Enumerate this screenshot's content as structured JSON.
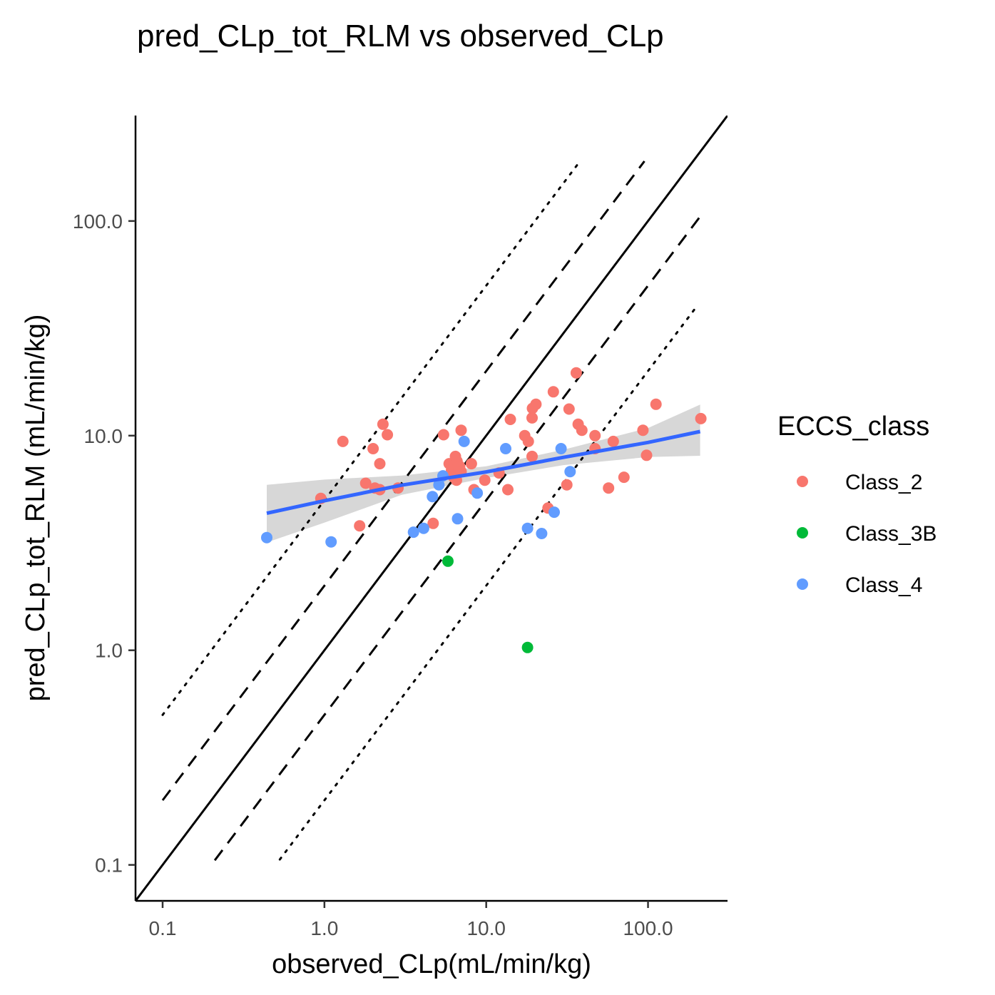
{
  "chart_data": {
    "type": "scatter",
    "title": "pred_CLp_tot_RLM vs observed_CLp",
    "xlabel": "observed_CLp(mL/min/kg)",
    "ylabel": "pred_CLp_tot_RLM (mL/min/kg)",
    "xscale": "log10",
    "yscale": "log10",
    "xlim": [
      0.068,
      310
    ],
    "ylim": [
      0.068,
      310
    ],
    "xticks": [
      0.1,
      1,
      10,
      100
    ],
    "xtick_labels": [
      "0.1",
      "1.0",
      "10.0",
      "100.0"
    ],
    "yticks": [
      0.1,
      1,
      10,
      100
    ],
    "ytick_labels": [
      "0.1",
      "1.0",
      "10.0",
      "100.0"
    ],
    "grid": false,
    "legend": {
      "title": "ECCS_class",
      "placement": "right",
      "entries": [
        {
          "label": "Class_2",
          "color": "#F8766D"
        },
        {
          "label": "Class_3B",
          "color": "#00BA38"
        },
        {
          "label": "Class_4",
          "color": "#619CFF"
        }
      ]
    },
    "reference_lines": [
      {
        "kind": "identity",
        "style": "solid",
        "fold": 1,
        "x_range": [
          0.068,
          310
        ]
      },
      {
        "kind": "fold_upper",
        "style": "dashed",
        "fold": 2,
        "x_range": [
          0.1,
          95
        ]
      },
      {
        "kind": "fold_lower",
        "style": "dashed",
        "fold": 0.5,
        "x_range": [
          0.21,
          210
        ]
      },
      {
        "kind": "fold_upper",
        "style": "dotted",
        "fold": 5,
        "x_range": [
          0.1,
          38
        ]
      },
      {
        "kind": "fold_lower",
        "style": "dotted",
        "fold": 0.2,
        "x_range": [
          0.53,
          200
        ]
      }
    ],
    "regression": {
      "color": "#3366FF",
      "band_color": "#d3d3d3",
      "x": [
        0.44,
        1.0,
        3.0,
        10.0,
        30.0,
        100.0,
        210.0
      ],
      "fit": [
        4.35,
        4.97,
        5.88,
        6.78,
        7.92,
        9.3,
        10.45
      ],
      "lower": [
        3.18,
        3.93,
        5.3,
        6.35,
        7.29,
        7.95,
        8.06
      ],
      "upper": [
        5.9,
        6.24,
        6.52,
        7.2,
        8.6,
        10.85,
        13.95
      ]
    },
    "series": [
      {
        "name": "Class_2",
        "color": "#F8766D",
        "points": [
          [
            0.95,
            5.1
          ],
          [
            1.3,
            9.4
          ],
          [
            1.65,
            3.8
          ],
          [
            1.8,
            6.0
          ],
          [
            2.0,
            8.7
          ],
          [
            2.05,
            5.7
          ],
          [
            2.2,
            5.6
          ],
          [
            2.2,
            7.4
          ],
          [
            2.3,
            11.3
          ],
          [
            2.45,
            10.1
          ],
          [
            2.85,
            5.7
          ],
          [
            4.7,
            3.9
          ],
          [
            5.45,
            10.1
          ],
          [
            5.9,
            7.4
          ],
          [
            6.1,
            6.9
          ],
          [
            6.3,
            6.4
          ],
          [
            6.45,
            8.0
          ],
          [
            6.55,
            6.2
          ],
          [
            6.6,
            7.6
          ],
          [
            6.7,
            6.7
          ],
          [
            6.8,
            6.9
          ],
          [
            6.85,
            7.2
          ],
          [
            7.0,
            10.6
          ],
          [
            7.0,
            6.8
          ],
          [
            8.1,
            7.4
          ],
          [
            8.4,
            5.6
          ],
          [
            9.8,
            6.2
          ],
          [
            12.0,
            6.7
          ],
          [
            13.6,
            5.6
          ],
          [
            14.1,
            11.9
          ],
          [
            17.3,
            10.0
          ],
          [
            18.2,
            9.4
          ],
          [
            19.2,
            8.0
          ],
          [
            19.2,
            12.1
          ],
          [
            19.3,
            13.4
          ],
          [
            20.3,
            14.0
          ],
          [
            24.1,
            4.6
          ],
          [
            26.0,
            16.0
          ],
          [
            31.5,
            5.9
          ],
          [
            32.5,
            13.3
          ],
          [
            36.0,
            19.6
          ],
          [
            37.0,
            11.3
          ],
          [
            39.0,
            10.6
          ],
          [
            47.0,
            10.0
          ],
          [
            47.0,
            8.7
          ],
          [
            57.0,
            5.7
          ],
          [
            61.0,
            9.4
          ],
          [
            71.0,
            6.4
          ],
          [
            93.0,
            10.6
          ],
          [
            98.0,
            8.1
          ],
          [
            112.0,
            14.0
          ],
          [
            212.0,
            12.0
          ]
        ]
      },
      {
        "name": "Class_3B",
        "color": "#00BA38",
        "points": [
          [
            5.8,
            2.6
          ],
          [
            18.0,
            1.03
          ]
        ]
      },
      {
        "name": "Class_4",
        "color": "#619CFF",
        "points": [
          [
            0.44,
            3.35
          ],
          [
            1.1,
            3.2
          ],
          [
            3.55,
            3.55
          ],
          [
            4.1,
            3.7
          ],
          [
            4.65,
            5.2
          ],
          [
            5.1,
            5.9
          ],
          [
            5.4,
            6.5
          ],
          [
            6.65,
            4.1
          ],
          [
            7.3,
            9.4
          ],
          [
            8.8,
            5.4
          ],
          [
            13.2,
            8.7
          ],
          [
            18.0,
            3.7
          ],
          [
            22.0,
            3.5
          ],
          [
            26.3,
            4.4
          ],
          [
            29.0,
            8.7
          ],
          [
            33.0,
            6.8
          ]
        ]
      }
    ]
  }
}
